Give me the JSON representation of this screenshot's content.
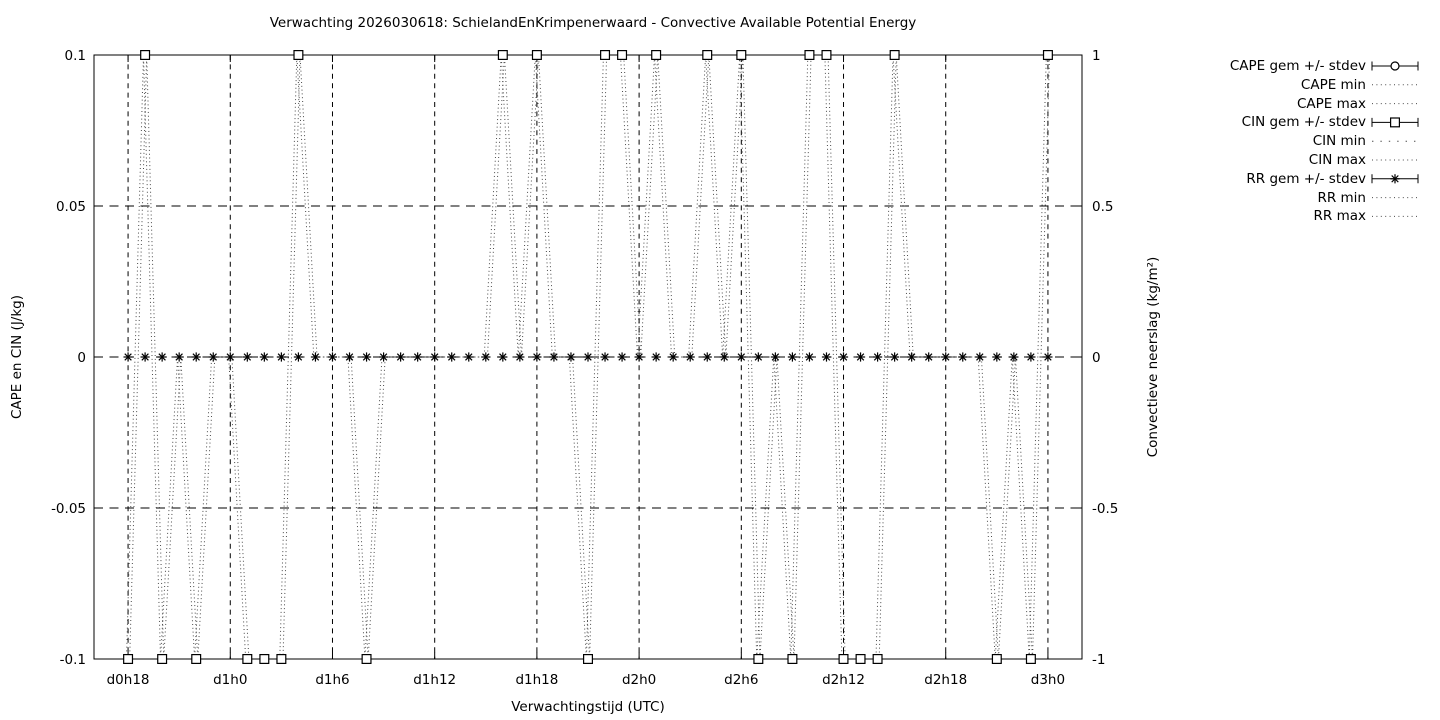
{
  "chart_data": {
    "type": "line",
    "title": "Verwachting 2026030618: SchielandEnKrimpenerwaard - Convective Available Potential Energy",
    "xlabel": "Verwachtingstijd (UTC)",
    "ylabel_left": "CAPE en CIN (J/kg)",
    "ylabel_right": "Convectieve neerslag (kg/m²)",
    "grid": true,
    "legend_position": "outside-top-right",
    "x_tick_labels": [
      "d0h18",
      "d1h0",
      "d1h6",
      "d1h12",
      "d1h18",
      "d2h0",
      "d2h6",
      "d2h12",
      "d2h18",
      "d3h0"
    ],
    "x_tick_hours": [
      0,
      6,
      12,
      18,
      24,
      30,
      36,
      42,
      48,
      54
    ],
    "y_left_tick_labels": [
      "0.1",
      "0.05",
      "0",
      "-0.05",
      "-0.1"
    ],
    "y_left_tick_values": [
      0.1,
      0.05,
      0,
      -0.05,
      -0.1
    ],
    "y_left_range": [
      -0.1,
      0.1
    ],
    "y_right_tick_labels": [
      "1",
      "0.5",
      "0",
      "-0.5",
      "-1"
    ],
    "y_right_tick_values": [
      1,
      0.5,
      0,
      -0.5,
      -1
    ],
    "y_right_range": [
      -1,
      1
    ],
    "legend": [
      {
        "label": "CAPE gem +/- stdev",
        "style": "errorbar",
        "marker": "circle"
      },
      {
        "label": "CAPE min",
        "style": "dots-fine"
      },
      {
        "label": "CAPE max",
        "style": "dots-fine"
      },
      {
        "label": "CIN gem +/- stdev",
        "style": "errorbar",
        "marker": "square"
      },
      {
        "label": "CIN min",
        "style": "dots-sparse"
      },
      {
        "label": "CIN max",
        "style": "dots-fine"
      },
      {
        "label": "RR gem +/- stdev",
        "style": "errorbar",
        "marker": "star"
      },
      {
        "label": "RR min",
        "style": "dots-fine"
      },
      {
        "label": "RR max",
        "style": "dots-fine"
      }
    ],
    "series": [
      {
        "name": "RR gem +/- stdev",
        "marker": "star",
        "hours_from": 0,
        "hours_to": 54,
        "step_hours": 1,
        "all_values": 0
      },
      {
        "name": "CIN gem clipped at +0.1",
        "marker": "square",
        "top_hours": [
          1,
          10,
          22,
          24,
          28,
          29,
          31,
          34,
          36,
          40,
          41,
          45,
          54
        ],
        "value": 0.1
      },
      {
        "name": "CIN gem clipped at -0.1",
        "marker": "square",
        "bottom_hours": [
          0,
          2,
          4,
          7,
          8,
          9,
          14,
          27,
          37,
          39,
          42,
          43,
          44,
          51,
          53
        ],
        "value": -0.1
      }
    ],
    "minmax_envelope": {
      "unit_value": 0.1,
      "hours_from": 0,
      "signs": [
        -1,
        1,
        -1,
        0,
        -1,
        0,
        0,
        -1,
        -1,
        -1,
        1,
        0,
        0,
        0,
        -1,
        0,
        0,
        0,
        0,
        0,
        0,
        0,
        1,
        0,
        1,
        0,
        0,
        -1,
        1,
        1,
        0,
        1,
        0,
        0,
        1,
        0,
        1,
        -1,
        0,
        -1,
        1,
        1,
        -1,
        -1,
        -1,
        1,
        0,
        0,
        0,
        0,
        0,
        -1,
        0,
        -1,
        1
      ]
    },
    "first_x_label": "d0h18",
    "last_x_label": "d3h0"
  }
}
